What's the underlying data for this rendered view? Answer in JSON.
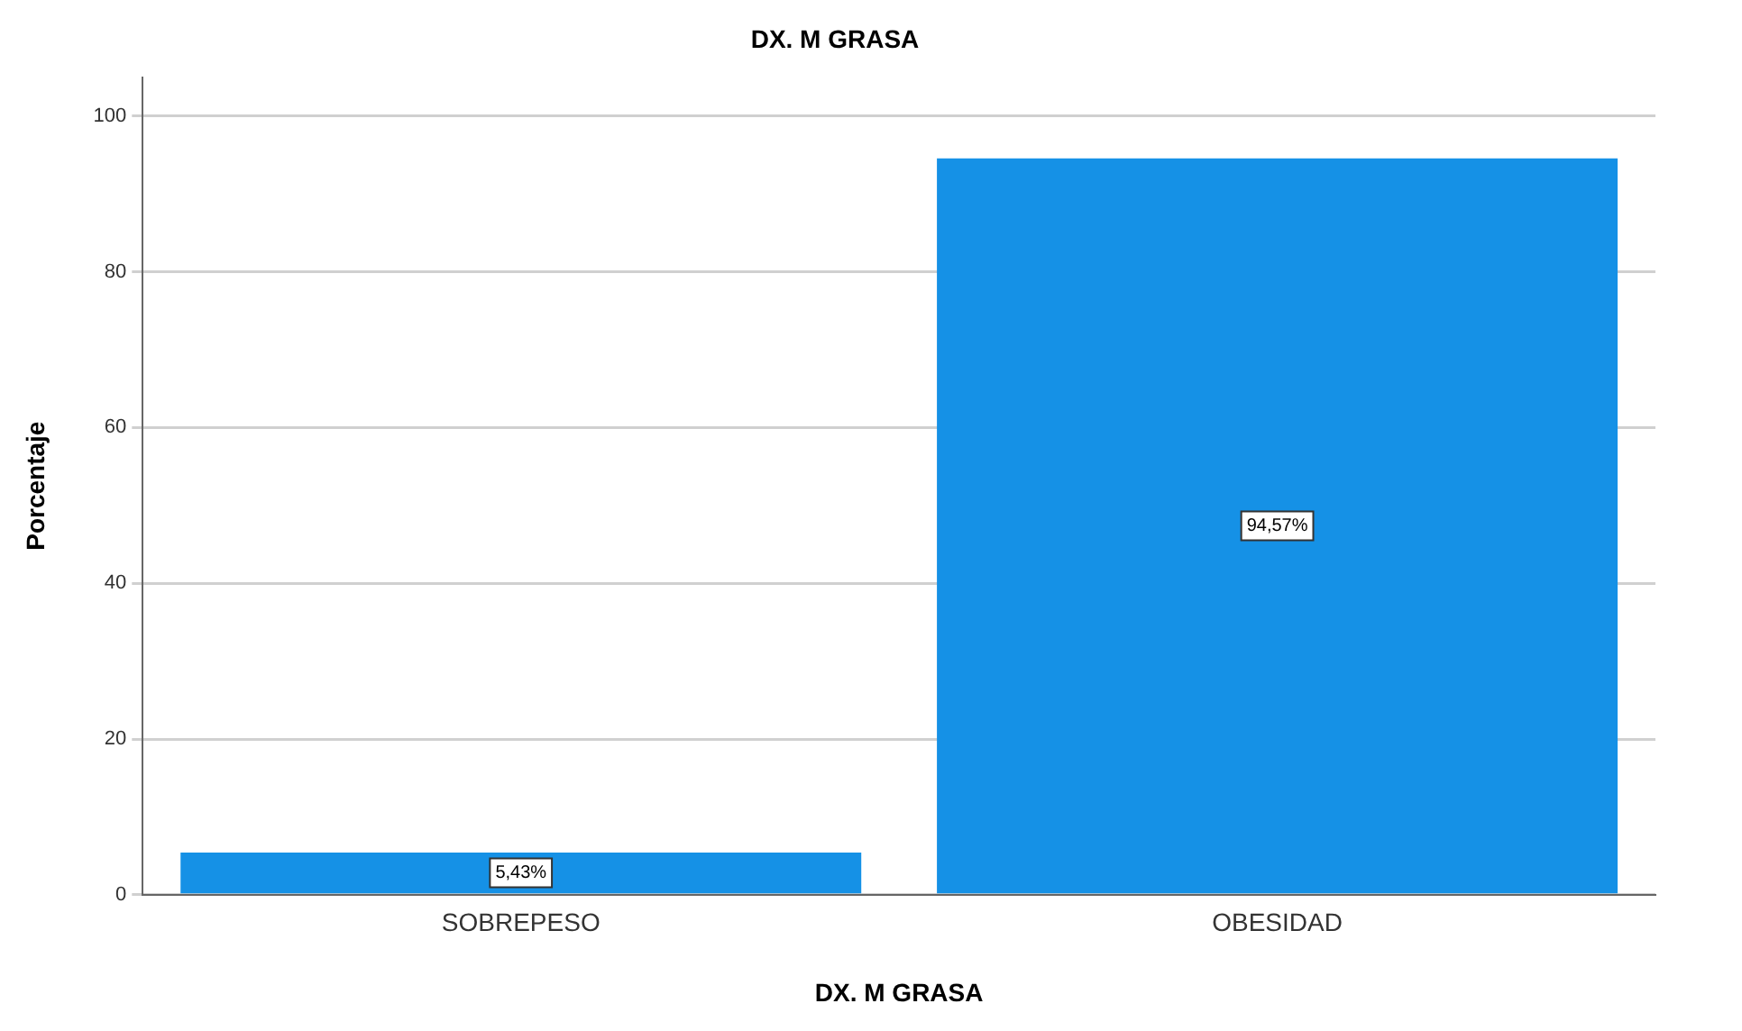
{
  "chart_data": {
    "type": "bar",
    "title": "DX. M GRASA",
    "xlabel": "DX. M GRASA",
    "ylabel": "Porcentaje",
    "categories": [
      "SOBREPESO",
      "OBESIDAD"
    ],
    "values": [
      5.43,
      94.57
    ],
    "value_labels": [
      "5,43%",
      "94,57%"
    ],
    "color": "#1591e6",
    "ylim": [
      0,
      105
    ],
    "yticks": [
      0,
      20,
      40,
      60,
      80,
      100
    ],
    "grid": "y"
  }
}
